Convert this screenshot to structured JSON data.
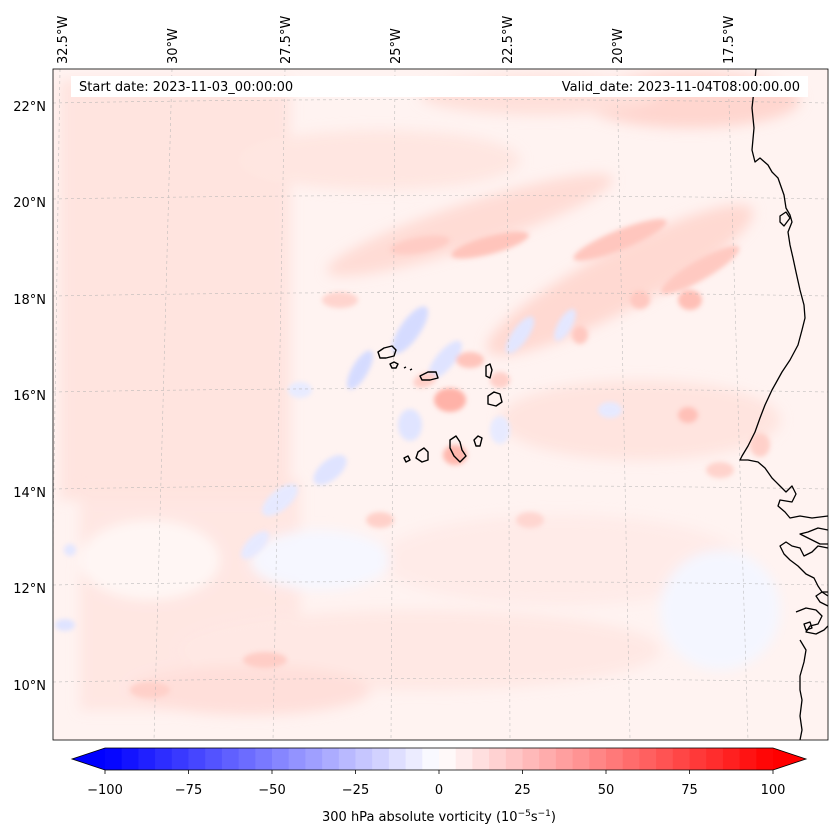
{
  "map": {
    "projection": "conic",
    "lon_labels": [
      "32.5°W",
      "30°W",
      "27.5°W",
      "25°W",
      "22.5°W",
      "20°W",
      "17.5°W"
    ],
    "lat_labels": [
      "22°N",
      "20°N",
      "18°N",
      "16°N",
      "14°N",
      "12°N",
      "10°N"
    ],
    "gridlines": "dashed",
    "start_date": "Start date: 2023-11-03_00:00:00",
    "valid_date": "Valid_date: 2023-11-04T08:00:00.00",
    "field_colormap": "bwr"
  },
  "colorbar": {
    "label": "300 hPa absolute vorticity (10",
    "label_exp1": "−5",
    "label_mid": "s",
    "label_exp2": "−1",
    "label_end": ")",
    "min": -100,
    "max": 100,
    "levels": 40,
    "ticks": [
      "−100",
      "−75",
      "−50",
      "−25",
      "0",
      "25",
      "50",
      "75",
      "100"
    ],
    "extend": "both",
    "colors": {
      "low": "#0000ff",
      "mid": "#ffffff",
      "high": "#ff0000"
    }
  }
}
